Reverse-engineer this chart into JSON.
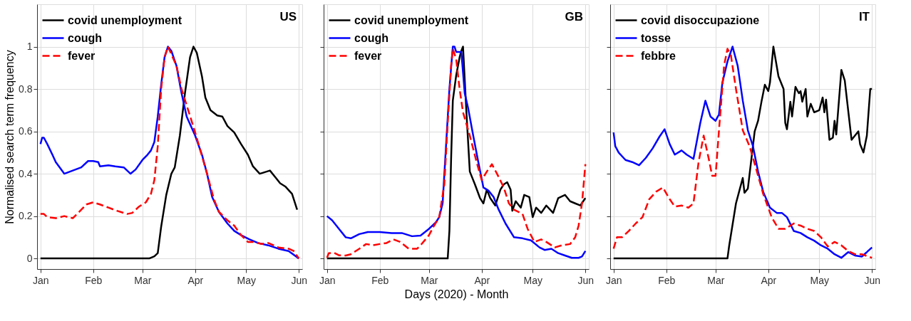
{
  "chart_data": [
    {
      "type": "line",
      "ylabel": "Normalised search term frequency",
      "annotations": [
        "US"
      ],
      "legend": "top left",
      "grid": true,
      "tick_labels": true,
      "xlim": [
        "2019-12-30",
        "2020-06-03"
      ],
      "ylim": [
        -0.05,
        1.2
      ],
      "yticks": [
        0,
        0.2,
        0.4,
        0.6,
        0.8,
        1
      ],
      "xticks": [
        {
          "value": "2020-01-01",
          "label": "Jan"
        },
        {
          "value": "2020-02-01",
          "label": "Feb"
        },
        {
          "value": "2020-03-01",
          "label": "Mar"
        },
        {
          "value": "2020-04-01",
          "label": "Apr"
        },
        {
          "value": "2020-05-01",
          "label": "May"
        },
        {
          "value": "2020-06-01",
          "label": "Jun"
        }
      ],
      "series": [
        {
          "name": "covid unemployment",
          "color": "#000000",
          "line_style": "solid",
          "x": [
            "2020-01-01",
            "2020-03-05",
            "2020-03-08",
            "2020-03-10",
            "2020-03-12",
            "2020-03-15",
            "2020-03-18",
            "2020-03-20",
            "2020-03-23",
            "2020-03-26",
            "2020-03-29",
            "2020-03-31",
            "2020-04-02",
            "2020-04-05",
            "2020-04-07",
            "2020-04-10",
            "2020-04-14",
            "2020-04-17",
            "2020-04-20",
            "2020-04-24",
            "2020-04-28",
            "2020-05-02",
            "2020-05-05",
            "2020-05-09",
            "2020-05-13",
            "2020-05-15",
            "2020-05-18",
            "2020-05-21",
            "2020-05-24",
            "2020-05-28",
            "2020-05-31"
          ],
          "values": [
            0,
            0,
            0.01,
            0.025,
            0.15,
            0.3,
            0.4,
            0.43,
            0.58,
            0.78,
            0.95,
            1.0,
            0.97,
            0.86,
            0.76,
            0.7,
            0.675,
            0.67,
            0.625,
            0.595,
            0.54,
            0.49,
            0.435,
            0.4,
            0.41,
            0.415,
            0.385,
            0.355,
            0.34,
            0.305,
            0.23
          ]
        },
        {
          "name": "cough",
          "color": "#0000ff",
          "line_style": "solid",
          "x": [
            "2020-01-01",
            "2020-01-02",
            "2020-01-03",
            "2020-01-05",
            "2020-01-08",
            "2020-01-10",
            "2020-01-15",
            "2020-01-20",
            "2020-01-25",
            "2020-01-29",
            "2020-02-01",
            "2020-02-04",
            "2020-02-05",
            "2020-02-10",
            "2020-02-14",
            "2020-02-19",
            "2020-02-23",
            "2020-02-26",
            "2020-03-01",
            "2020-03-04",
            "2020-03-06",
            "2020-03-08",
            "2020-03-10",
            "2020-03-12",
            "2020-03-14",
            "2020-03-16",
            "2020-03-18",
            "2020-03-21",
            "2020-03-24",
            "2020-03-27",
            "2020-04-01",
            "2020-04-05",
            "2020-04-08",
            "2020-04-11",
            "2020-04-15",
            "2020-04-20",
            "2020-04-24",
            "2020-04-28",
            "2020-05-03",
            "2020-05-08",
            "2020-05-14",
            "2020-05-20",
            "2020-05-26",
            "2020-06-01"
          ],
          "values": [
            0.54,
            0.57,
            0.57,
            0.54,
            0.49,
            0.455,
            0.4,
            0.415,
            0.43,
            0.46,
            0.46,
            0.455,
            0.435,
            0.44,
            0.435,
            0.43,
            0.4,
            0.42,
            0.465,
            0.49,
            0.51,
            0.55,
            0.67,
            0.82,
            0.95,
            1.0,
            0.98,
            0.91,
            0.78,
            0.67,
            0.58,
            0.49,
            0.4,
            0.29,
            0.22,
            0.165,
            0.13,
            0.11,
            0.09,
            0.073,
            0.062,
            0.046,
            0.035,
            0.0
          ]
        },
        {
          "name": "fever",
          "color": "#ff0000",
          "line_style": "dashed",
          "x": [
            "2020-01-01",
            "2020-01-03",
            "2020-01-05",
            "2020-01-10",
            "2020-01-15",
            "2020-01-20",
            "2020-01-25",
            "2020-01-28",
            "2020-02-01",
            "2020-02-05",
            "2020-02-10",
            "2020-02-15",
            "2020-02-21",
            "2020-02-24",
            "2020-02-28",
            "2020-03-03",
            "2020-03-06",
            "2020-03-08",
            "2020-03-10",
            "2020-03-12",
            "2020-03-14",
            "2020-03-16",
            "2020-03-21",
            "2020-03-24",
            "2020-04-01",
            "2020-04-08",
            "2020-04-12",
            "2020-04-15",
            "2020-04-20",
            "2020-04-24",
            "2020-04-28",
            "2020-05-02",
            "2020-05-06",
            "2020-05-10",
            "2020-05-14",
            "2020-05-20",
            "2020-05-26",
            "2020-05-29",
            "2020-06-01"
          ],
          "values": [
            0.21,
            0.21,
            0.195,
            0.19,
            0.2,
            0.19,
            0.23,
            0.255,
            0.265,
            0.255,
            0.24,
            0.225,
            0.21,
            0.215,
            0.245,
            0.265,
            0.305,
            0.37,
            0.53,
            0.8,
            0.95,
            1.0,
            0.91,
            0.8,
            0.595,
            0.4,
            0.28,
            0.22,
            0.18,
            0.155,
            0.11,
            0.078,
            0.078,
            0.068,
            0.073,
            0.052,
            0.046,
            0.035,
            0.0
          ]
        }
      ]
    },
    {
      "type": "line",
      "xlabel": "Days (2020) - Month",
      "annotations": [
        "GB"
      ],
      "legend": "top left",
      "grid": true,
      "tick_labels": "x",
      "xlim": [
        "2019-12-30",
        "2020-06-03"
      ],
      "ylim": [
        -0.05,
        1.2
      ],
      "yticks": [
        0,
        0.2,
        0.4,
        0.6,
        0.8,
        1
      ],
      "xticks": [
        {
          "value": "2020-01-01",
          "label": "Jan"
        },
        {
          "value": "2020-02-01",
          "label": "Feb"
        },
        {
          "value": "2020-03-01",
          "label": "Mar"
        },
        {
          "value": "2020-04-01",
          "label": "Apr"
        },
        {
          "value": "2020-05-01",
          "label": "May"
        },
        {
          "value": "2020-06-01",
          "label": "Jun"
        }
      ],
      "series": [
        {
          "name": "covid unemployment",
          "color": "#000000",
          "line_style": "solid",
          "x": [
            "2020-01-01",
            "2020-03-12",
            "2020-03-13",
            "2020-03-14",
            "2020-03-15",
            "2020-03-17",
            "2020-03-19",
            "2020-03-20",
            "2020-03-21",
            "2020-03-23",
            "2020-03-25",
            "2020-03-28",
            "2020-03-31",
            "2020-04-02",
            "2020-04-04",
            "2020-04-06",
            "2020-04-09",
            "2020-04-12",
            "2020-04-14",
            "2020-04-16",
            "2020-04-18",
            "2020-04-19",
            "2020-04-21",
            "2020-04-24",
            "2020-04-26",
            "2020-04-29",
            "2020-05-01",
            "2020-05-03",
            "2020-05-06",
            "2020-05-09",
            "2020-05-13",
            "2020-05-16",
            "2020-05-20",
            "2020-05-23",
            "2020-05-26",
            "2020-05-29",
            "2020-06-01"
          ],
          "values": [
            0,
            0,
            0.13,
            0.47,
            0.745,
            0.865,
            0.95,
            0.98,
            1.0,
            0.69,
            0.41,
            0.35,
            0.285,
            0.26,
            0.325,
            0.285,
            0.25,
            0.325,
            0.35,
            0.36,
            0.325,
            0.225,
            0.27,
            0.24,
            0.3,
            0.29,
            0.195,
            0.24,
            0.215,
            0.25,
            0.215,
            0.285,
            0.3,
            0.27,
            0.26,
            0.25,
            0.285
          ]
        },
        {
          "name": "cough",
          "color": "#0000ff",
          "line_style": "solid",
          "x": [
            "2020-01-01",
            "2020-01-04",
            "2020-01-08",
            "2020-01-12",
            "2020-01-15",
            "2020-01-20",
            "2020-01-25",
            "2020-02-01",
            "2020-02-08",
            "2020-02-14",
            "2020-02-20",
            "2020-02-25",
            "2020-03-01",
            "2020-03-05",
            "2020-03-07",
            "2020-03-09",
            "2020-03-11",
            "2020-03-13",
            "2020-03-15",
            "2020-03-16",
            "2020-03-17",
            "2020-03-20",
            "2020-03-22",
            "2020-03-24",
            "2020-03-27",
            "2020-03-30",
            "2020-04-02",
            "2020-04-05",
            "2020-04-08",
            "2020-04-11",
            "2020-04-15",
            "2020-04-20",
            "2020-04-25",
            "2020-04-30",
            "2020-05-05",
            "2020-05-08",
            "2020-05-12",
            "2020-05-16",
            "2020-05-20",
            "2020-05-24",
            "2020-05-28",
            "2020-05-30",
            "2020-06-01"
          ],
          "values": [
            0.2,
            0.18,
            0.14,
            0.1,
            0.095,
            0.115,
            0.125,
            0.125,
            0.12,
            0.12,
            0.105,
            0.108,
            0.14,
            0.17,
            0.195,
            0.26,
            0.53,
            0.8,
            1.0,
            1.0,
            0.975,
            0.975,
            0.78,
            0.71,
            0.58,
            0.455,
            0.335,
            0.32,
            0.29,
            0.23,
            0.165,
            0.1,
            0.095,
            0.085,
            0.052,
            0.04,
            0.046,
            0.025,
            0.014,
            0.003,
            0.003,
            0.009,
            0.035
          ]
        },
        {
          "name": "fever",
          "color": "#ff0000",
          "line_style": "dashed",
          "x": [
            "2020-01-01",
            "2020-01-02",
            "2020-01-05",
            "2020-01-08",
            "2020-01-12",
            "2020-01-15",
            "2020-01-20",
            "2020-01-24",
            "2020-01-28",
            "2020-02-01",
            "2020-02-05",
            "2020-02-09",
            "2020-02-13",
            "2020-02-18",
            "2020-02-23",
            "2020-02-25",
            "2020-03-01",
            "2020-03-04",
            "2020-03-07",
            "2020-03-10",
            "2020-03-12",
            "2020-03-14",
            "2020-03-15",
            "2020-03-17",
            "2020-03-19",
            "2020-03-21",
            "2020-03-25",
            "2020-03-29",
            "2020-04-01",
            "2020-04-04",
            "2020-04-07",
            "2020-04-10",
            "2020-04-14",
            "2020-04-17",
            "2020-04-20",
            "2020-04-25",
            "2020-04-28",
            "2020-05-02",
            "2020-05-06",
            "2020-05-09",
            "2020-05-14",
            "2020-05-18",
            "2020-05-23",
            "2020-05-26",
            "2020-05-28",
            "2020-05-30",
            "2020-06-01"
          ],
          "values": [
            0.003,
            0.025,
            0.027,
            0.015,
            0.014,
            0.02,
            0.046,
            0.068,
            0.062,
            0.068,
            0.073,
            0.09,
            0.078,
            0.046,
            0.046,
            0.062,
            0.11,
            0.155,
            0.195,
            0.35,
            0.64,
            0.91,
            0.99,
            0.94,
            0.8,
            0.69,
            0.58,
            0.455,
            0.37,
            0.41,
            0.445,
            0.4,
            0.335,
            0.26,
            0.23,
            0.21,
            0.14,
            0.078,
            0.09,
            0.078,
            0.052,
            0.062,
            0.068,
            0.1,
            0.155,
            0.26,
            0.445
          ]
        }
      ]
    },
    {
      "type": "line",
      "annotations": [
        "IT"
      ],
      "legend": "top left",
      "grid": true,
      "tick_labels": "x",
      "xlim": [
        "2019-12-30",
        "2020-06-03"
      ],
      "ylim": [
        -0.05,
        1.2
      ],
      "yticks": [
        0,
        0.2,
        0.4,
        0.6,
        0.8,
        1
      ],
      "xticks": [
        {
          "value": "2020-01-01",
          "label": "Jan"
        },
        {
          "value": "2020-02-01",
          "label": "Feb"
        },
        {
          "value": "2020-03-01",
          "label": "Mar"
        },
        {
          "value": "2020-04-01",
          "label": "Apr"
        },
        {
          "value": "2020-05-01",
          "label": "May"
        },
        {
          "value": "2020-06-01",
          "label": "Jun"
        }
      ],
      "series": [
        {
          "name": "covid disoccupazione",
          "color": "#000000",
          "line_style": "solid",
          "x": [
            "2020-01-01",
            "2020-03-08",
            "2020-03-09",
            "2020-03-13",
            "2020-03-15",
            "2020-03-17",
            "2020-03-18",
            "2020-03-20",
            "2020-03-24",
            "2020-03-26",
            "2020-03-28",
            "2020-03-30",
            "2020-04-01",
            "2020-04-02",
            "2020-04-04",
            "2020-04-07",
            "2020-04-10",
            "2020-04-11",
            "2020-04-12",
            "2020-04-14",
            "2020-04-15",
            "2020-04-17",
            "2020-04-19",
            "2020-04-20",
            "2020-04-21",
            "2020-04-23",
            "2020-04-24",
            "2020-04-26",
            "2020-04-28",
            "2020-05-01",
            "2020-05-03",
            "2020-05-04",
            "2020-05-05",
            "2020-05-07",
            "2020-05-09",
            "2020-05-10",
            "2020-05-11",
            "2020-05-14",
            "2020-05-16",
            "2020-05-18",
            "2020-05-20",
            "2020-05-24",
            "2020-05-25",
            "2020-05-27",
            "2020-05-29",
            "2020-05-31",
            "2020-06-01"
          ],
          "values": [
            0,
            0,
            0.06,
            0.26,
            0.32,
            0.38,
            0.31,
            0.33,
            0.6,
            0.65,
            0.74,
            0.82,
            0.79,
            0.83,
            1.0,
            0.86,
            0.8,
            0.64,
            0.61,
            0.74,
            0.67,
            0.81,
            0.78,
            0.79,
            0.74,
            0.8,
            0.67,
            0.73,
            0.69,
            0.7,
            0.76,
            0.69,
            0.75,
            0.56,
            0.57,
            0.65,
            0.585,
            0.89,
            0.84,
            0.7,
            0.56,
            0.6,
            0.54,
            0.5,
            0.58,
            0.8,
            0.8
          ]
        },
        {
          "name": "tosse",
          "color": "#0000ff",
          "line_style": "solid",
          "x": [
            "2020-01-01",
            "2020-01-02",
            "2020-01-04",
            "2020-01-08",
            "2020-01-12",
            "2020-01-16",
            "2020-01-20",
            "2020-01-24",
            "2020-01-28",
            "2020-01-31",
            "2020-02-03",
            "2020-02-06",
            "2020-02-10",
            "2020-02-13",
            "2020-02-17",
            "2020-02-21",
            "2020-02-24",
            "2020-02-27",
            "2020-03-01",
            "2020-03-03",
            "2020-03-05",
            "2020-03-08",
            "2020-03-11",
            "2020-03-14",
            "2020-03-17",
            "2020-03-20",
            "2020-03-23",
            "2020-03-26",
            "2020-03-29",
            "2020-04-02",
            "2020-04-06",
            "2020-04-09",
            "2020-04-12",
            "2020-04-16",
            "2020-04-20",
            "2020-04-24",
            "2020-04-28",
            "2020-05-02",
            "2020-05-06",
            "2020-05-10",
            "2020-05-14",
            "2020-05-18",
            "2020-05-22",
            "2020-05-26",
            "2020-05-29",
            "2020-06-01"
          ],
          "values": [
            0.595,
            0.53,
            0.5,
            0.465,
            0.455,
            0.44,
            0.475,
            0.52,
            0.575,
            0.61,
            0.54,
            0.49,
            0.51,
            0.49,
            0.47,
            0.64,
            0.745,
            0.67,
            0.65,
            0.68,
            0.83,
            0.93,
            1.0,
            0.91,
            0.745,
            0.605,
            0.53,
            0.41,
            0.315,
            0.24,
            0.215,
            0.215,
            0.195,
            0.13,
            0.12,
            0.1,
            0.084,
            0.062,
            0.046,
            0.02,
            0.003,
            0.03,
            0.014,
            0.009,
            0.03,
            0.052
          ]
        },
        {
          "name": "febbre",
          "color": "#ff0000",
          "line_style": "dashed",
          "x": [
            "2020-01-01",
            "2020-01-03",
            "2020-01-06",
            "2020-01-10",
            "2020-01-14",
            "2020-01-18",
            "2020-01-22",
            "2020-01-26",
            "2020-01-30",
            "2020-02-03",
            "2020-02-06",
            "2020-02-10",
            "2020-02-14",
            "2020-02-17",
            "2020-02-20",
            "2020-02-23",
            "2020-02-26",
            "2020-02-28",
            "2020-03-01",
            "2020-03-03",
            "2020-03-06",
            "2020-03-08",
            "2020-03-10",
            "2020-03-13",
            "2020-03-17",
            "2020-03-21",
            "2020-03-25",
            "2020-03-29",
            "2020-04-03",
            "2020-04-07",
            "2020-04-11",
            "2020-04-16",
            "2020-04-20",
            "2020-04-24",
            "2020-04-28",
            "2020-05-02",
            "2020-05-06",
            "2020-05-10",
            "2020-05-14",
            "2020-05-18",
            "2020-05-22",
            "2020-05-26",
            "2020-06-01"
          ],
          "values": [
            0.046,
            0.1,
            0.1,
            0.13,
            0.165,
            0.195,
            0.28,
            0.315,
            0.335,
            0.28,
            0.245,
            0.25,
            0.24,
            0.26,
            0.455,
            0.58,
            0.47,
            0.39,
            0.39,
            0.605,
            0.91,
            0.99,
            0.96,
            0.8,
            0.605,
            0.53,
            0.42,
            0.305,
            0.195,
            0.14,
            0.14,
            0.165,
            0.155,
            0.14,
            0.13,
            0.1,
            0.057,
            0.078,
            0.062,
            0.035,
            0.02,
            0.02,
            0.003
          ]
        }
      ]
    }
  ]
}
